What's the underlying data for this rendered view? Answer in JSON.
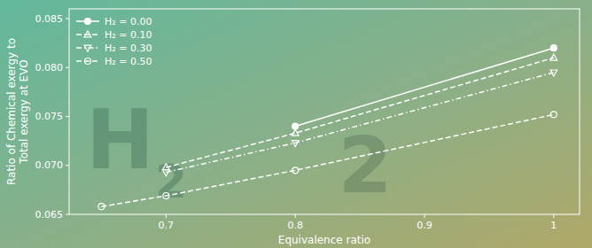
{
  "chart_data": {
    "type": "line",
    "xlabel": "Equivalence ratio",
    "ylabel": "Ratio of Chemical exergy to\nTotal exergy at EVO",
    "annotations": [
      "H",
      "2",
      "2"
    ],
    "series": [
      {
        "name": "H₂ = 0.00",
        "color": "white",
        "marker": "circle",
        "line_style": "solid",
        "x": [
          0.8,
          1.0
        ],
        "values": [
          0.074,
          0.082
        ]
      },
      {
        "name": "H₂ = 0.10",
        "color": "white",
        "marker": "open-triangle-up",
        "line_style": "dashed",
        "x": [
          0.7,
          0.8,
          1.0
        ],
        "values": [
          0.0698,
          0.0733,
          0.081
        ]
      },
      {
        "name": "H₂ = 0.30",
        "color": "white",
        "marker": "open-triangle-down",
        "line_style": "dashdot",
        "x": [
          0.7,
          0.8,
          1.0
        ],
        "values": [
          0.0693,
          0.0723,
          0.0795
        ]
      },
      {
        "name": "H₂ = 0.50",
        "color": "white",
        "marker": "open-circle",
        "line_style": "dashed",
        "x": [
          0.65,
          0.7,
          0.8,
          1.0
        ],
        "values": [
          0.0658,
          0.0669,
          0.0695,
          0.0752
        ]
      }
    ],
    "xlim": [
      0.625,
      1.02
    ],
    "ylim": [
      0.065,
      0.086
    ],
    "xticks": [
      0.7,
      0.8,
      0.9,
      1
    ],
    "yticks": [
      0.065,
      {
        "value": 0.07,
        "label": "0.070"
      },
      0.075,
      {
        "value": 0.08,
        "label": "0.080"
      },
      0.085
    ],
    "grid": false,
    "legend": "upper-left"
  }
}
